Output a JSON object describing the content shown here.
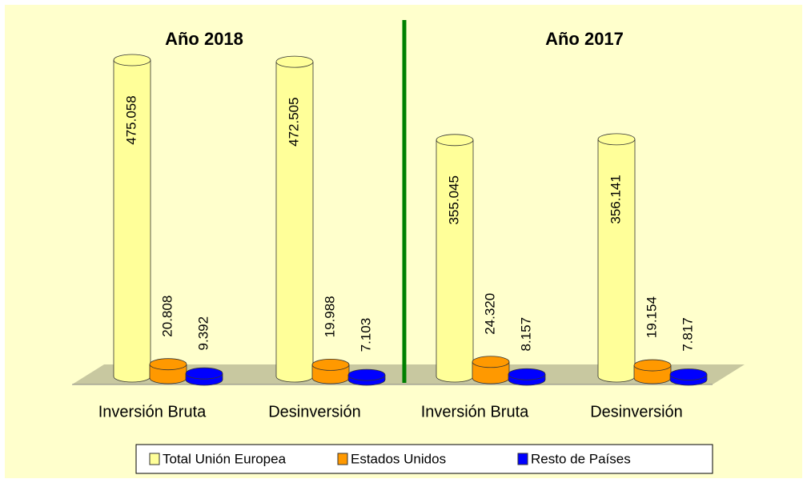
{
  "chart_data": {
    "type": "bar3d",
    "annotations": [
      "Año 2018",
      "Año 2017"
    ],
    "categories": [
      "Inversión Bruta",
      "Desinversión",
      "Inversión Bruta",
      "Desinversión"
    ],
    "series": [
      {
        "name": "Total Unión Europea",
        "color": "#ffff99",
        "values": [
          475058,
          472505,
          355045,
          356141
        ],
        "value_labels": [
          "475.058",
          "472.505",
          "355.045",
          "356.141"
        ]
      },
      {
        "name": "Estados Unidos",
        "color": "#ff9900",
        "values": [
          20808,
          19988,
          24320,
          19154
        ],
        "value_labels": [
          "20.808",
          "19.988",
          "24.320",
          "19.154"
        ]
      },
      {
        "name": "Resto de Países",
        "color": "#0000ff",
        "values": [
          9392,
          7103,
          8157,
          7817
        ],
        "value_labels": [
          "9.392",
          "7.103",
          "8.157",
          "7.817"
        ]
      }
    ]
  }
}
